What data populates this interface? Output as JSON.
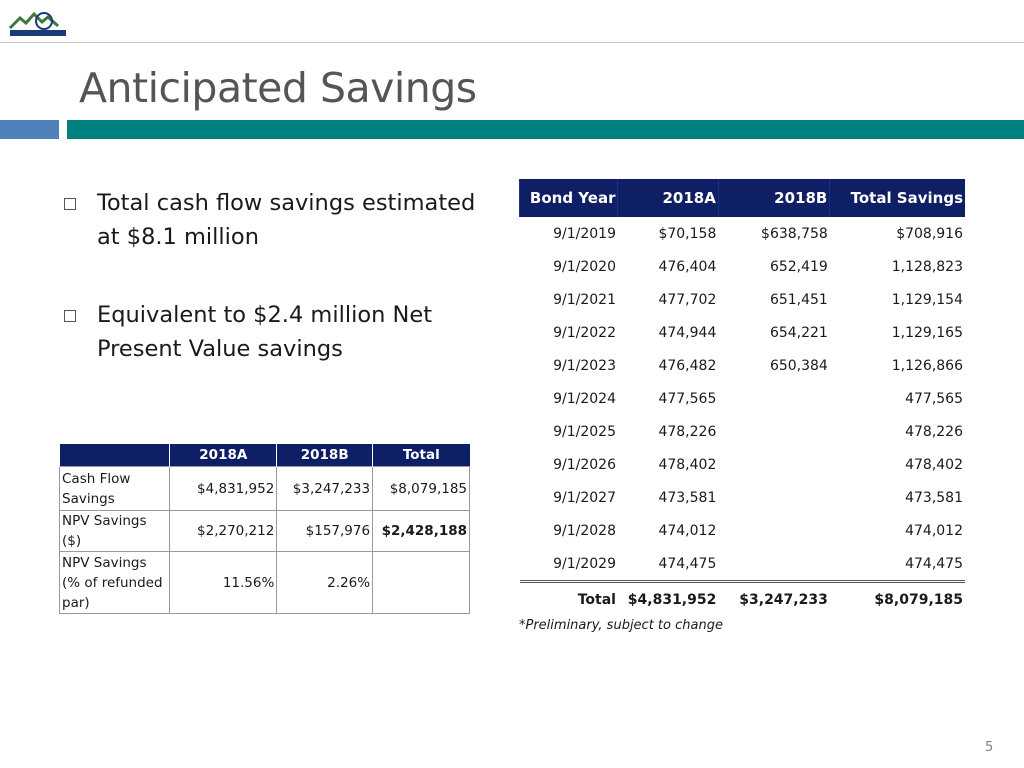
{
  "title": "Anticipated Savings",
  "bullets": [
    "Total cash flow savings estimated at $8.1 million",
    "Equivalent to $2.4 million Net Present Value savings"
  ],
  "summary_table": {
    "headers": [
      "",
      "2018A",
      "2018B",
      "Total"
    ],
    "rows": [
      {
        "label": "Cash Flow Savings",
        "a": "$4,831,952",
        "b": "$3,247,233",
        "total": "$8,079,185"
      },
      {
        "label": "NPV Savings ($)",
        "a": "$2,270,212",
        "b": "$157,976",
        "total": "$2,428,188"
      },
      {
        "label": "NPV Savings (% of refunded par)",
        "a": "11.56%",
        "b": "2.26%",
        "total": ""
      }
    ]
  },
  "schedule_table": {
    "headers": [
      "Bond Year",
      "2018A",
      "2018B",
      "Total Savings"
    ],
    "rows": [
      [
        "9/1/2019",
        "$70,158",
        "$638,758",
        "$708,916"
      ],
      [
        "9/1/2020",
        "476,404",
        "652,419",
        "1,128,823"
      ],
      [
        "9/1/2021",
        "477,702",
        "651,451",
        "1,129,154"
      ],
      [
        "9/1/2022",
        "474,944",
        "654,221",
        "1,129,165"
      ],
      [
        "9/1/2023",
        "476,482",
        "650,384",
        "1,126,866"
      ],
      [
        "9/1/2024",
        "477,565",
        "",
        "477,565"
      ],
      [
        "9/1/2025",
        "478,226",
        "",
        "478,226"
      ],
      [
        "9/1/2026",
        "478,402",
        "",
        "478,402"
      ],
      [
        "9/1/2027",
        "473,581",
        "",
        "473,581"
      ],
      [
        "9/1/2028",
        "474,012",
        "",
        "474,012"
      ],
      [
        "9/1/2029",
        "474,475",
        "",
        "474,475"
      ]
    ],
    "total": [
      "Total",
      "$4,831,952",
      "$3,247,233",
      "$8,079,185"
    ]
  },
  "footnote": "*Preliminary, subject to change",
  "page_number": "5",
  "colors": {
    "title": "#555555",
    "header_navy": "#0f1f66",
    "band_blue": "#4f81bd",
    "band_teal": "#00807f"
  }
}
